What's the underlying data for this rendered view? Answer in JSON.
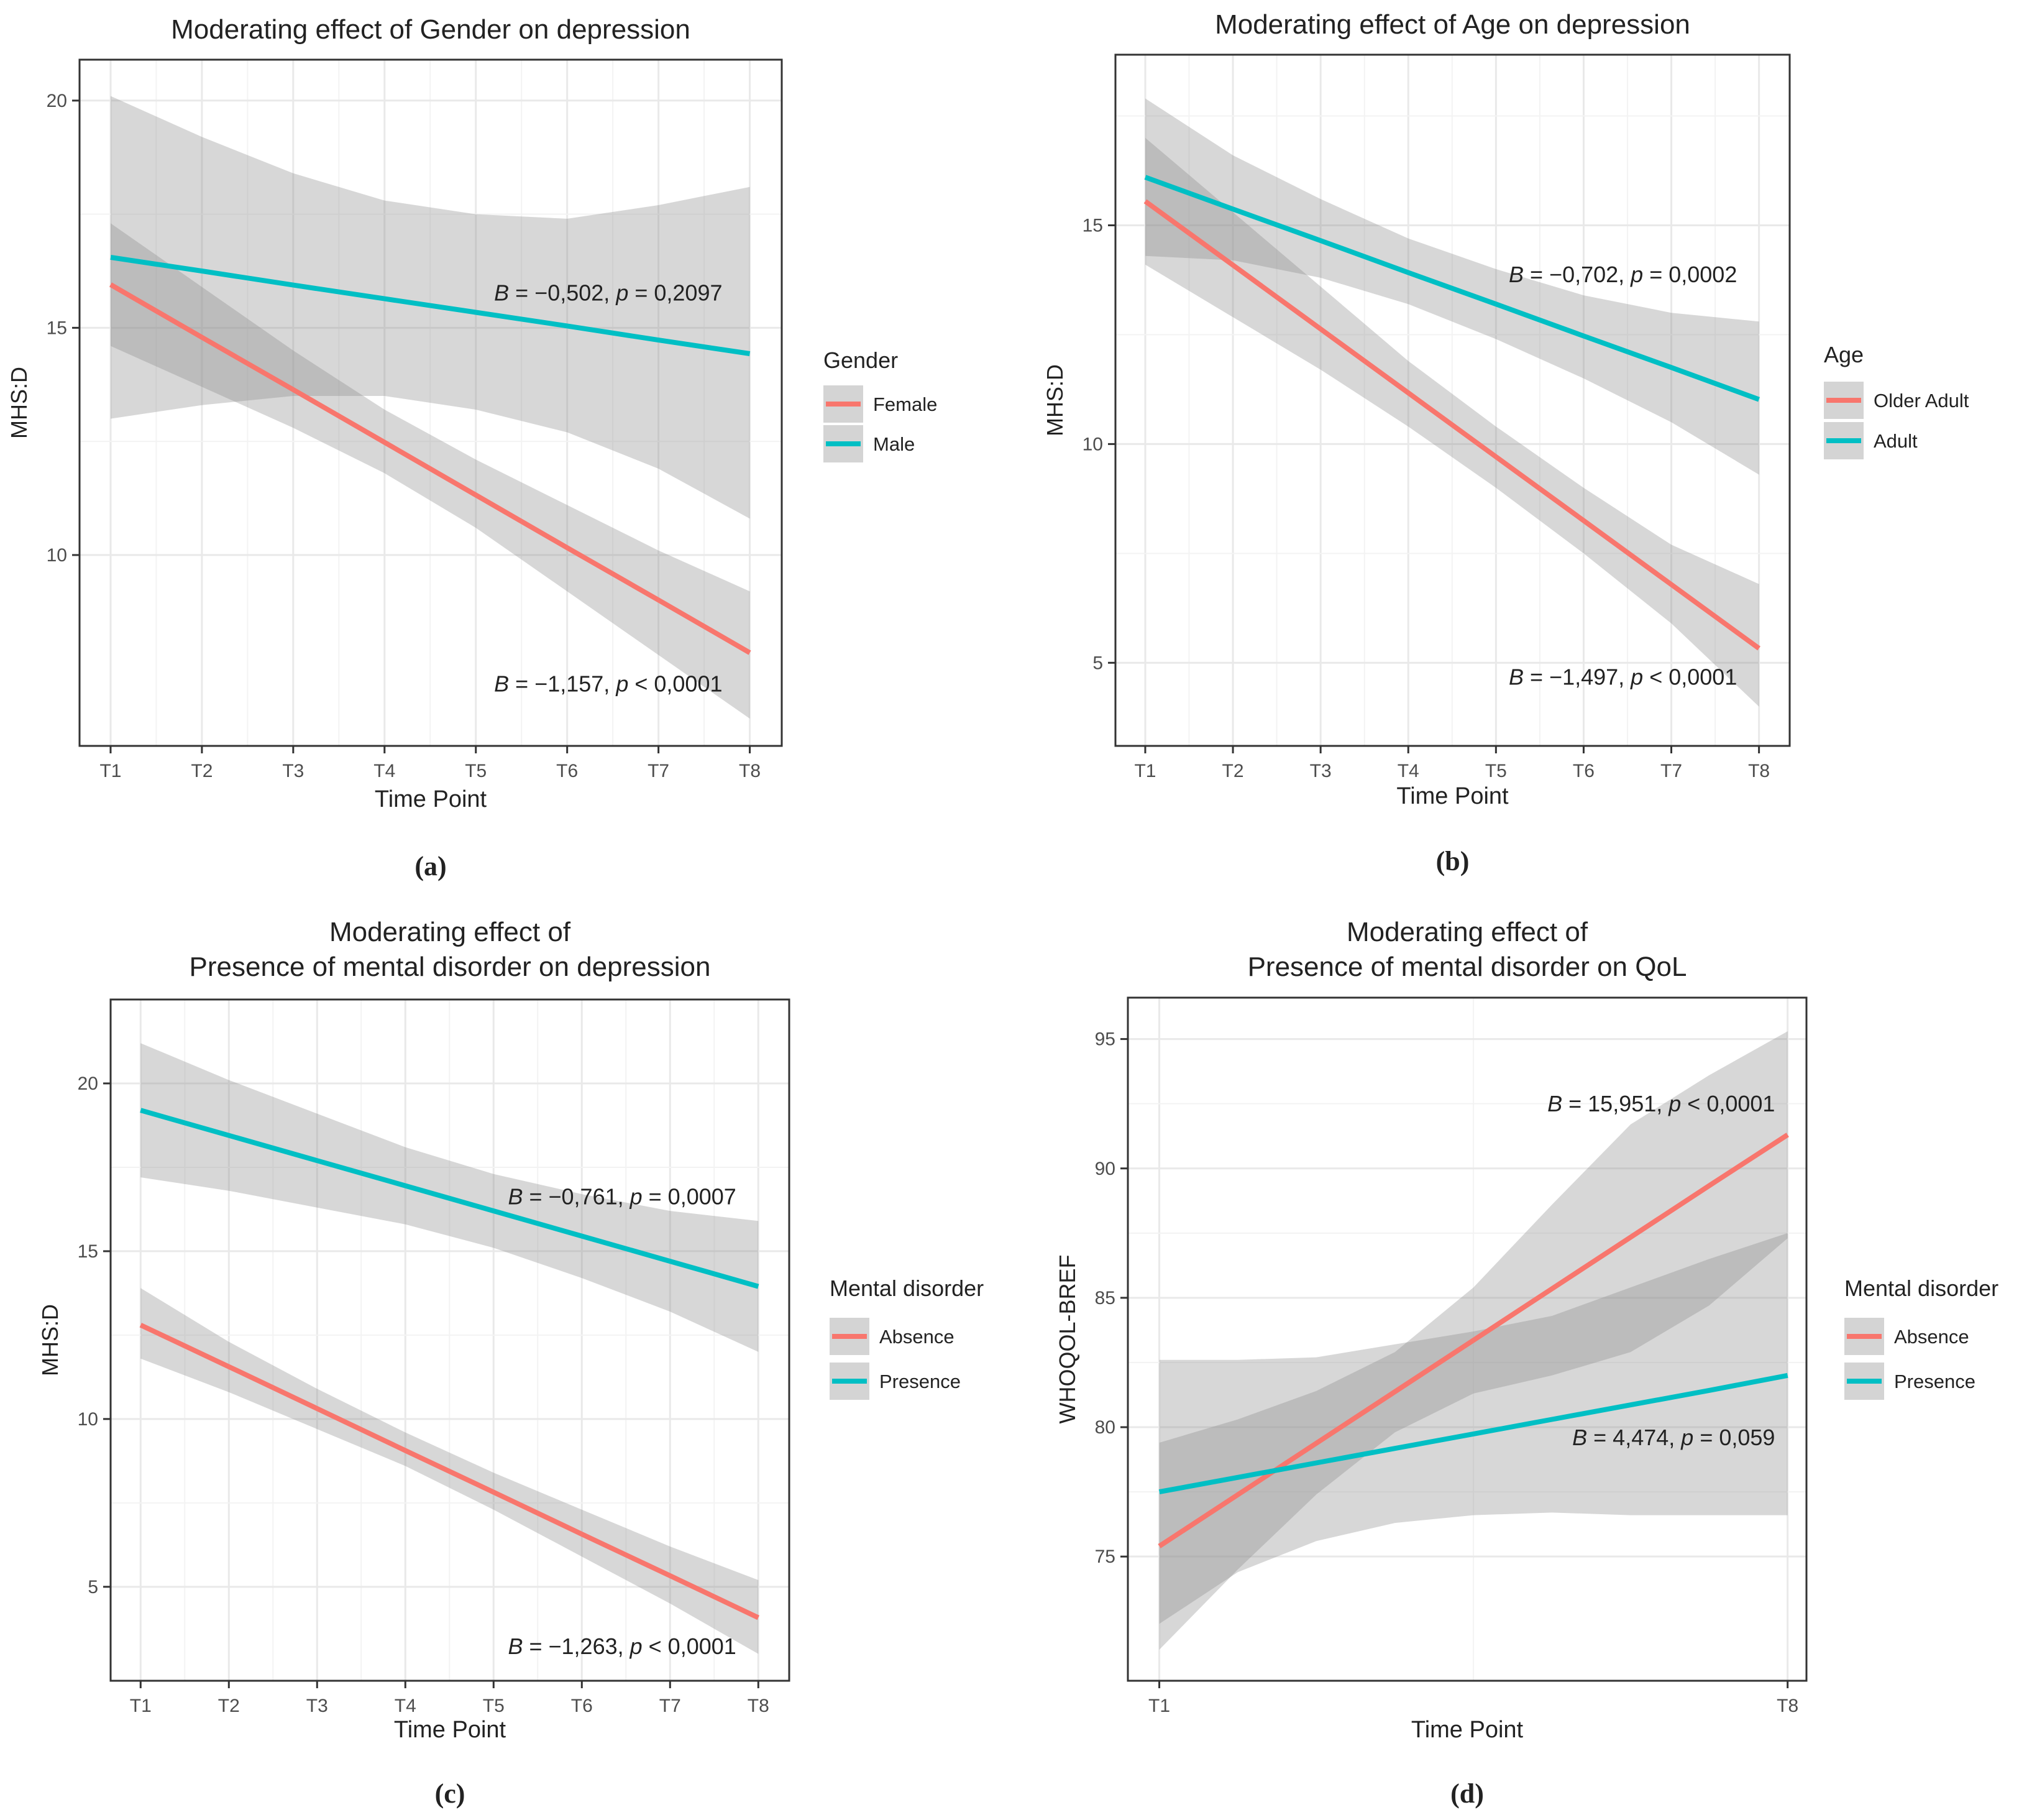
{
  "colors": {
    "red": "#F8766D",
    "teal": "#00BFC4",
    "ribbon": "#8a8a8a",
    "grid": "#e9e9e9",
    "panel_border": "#333333",
    "text": "#222222",
    "tick_text": "#4d4d4d"
  },
  "chart_data": [
    {
      "type": "line",
      "panel_label": "(a)",
      "title": "Moderating effect of Gender on depression",
      "xlabel": "Time Point",
      "ylabel": "MHS:D",
      "categories": [
        "T1",
        "T2",
        "T3",
        "T4",
        "T5",
        "T6",
        "T7",
        "T8"
      ],
      "xlim": [
        0.66,
        8.35
      ],
      "ylim": [
        5.8,
        20.9
      ],
      "yticks": [
        10,
        15,
        20
      ],
      "legend_title": "Gender",
      "legend_position": "right",
      "grid": true,
      "series": [
        {
          "name": "Female",
          "color": "#F8766D",
          "values": [
            15.95,
            14.79,
            13.64,
            12.48,
            11.32,
            10.16,
            9.01,
            7.85
          ],
          "ci_lower": [
            14.6,
            13.7,
            12.8,
            11.8,
            10.6,
            9.2,
            7.8,
            6.4
          ],
          "ci_upper": [
            17.3,
            15.9,
            14.5,
            13.2,
            12.1,
            11.1,
            10.1,
            9.2
          ]
        },
        {
          "name": "Male",
          "color": "#00BFC4",
          "values": [
            16.55,
            16.25,
            15.94,
            15.64,
            15.34,
            15.04,
            14.73,
            14.43
          ],
          "ci_lower": [
            13.0,
            13.3,
            13.5,
            13.5,
            13.2,
            12.7,
            11.9,
            10.8
          ],
          "ci_upper": [
            20.1,
            19.2,
            18.4,
            17.8,
            17.5,
            17.4,
            17.7,
            18.1
          ]
        }
      ],
      "annotations": [
        {
          "text": "B = −0,502, p = 0,2097",
          "x": 7.7,
          "y": 15.6
        },
        {
          "text": "B = −1,157, p < 0,0001",
          "x": 7.7,
          "y": 7.0
        }
      ]
    },
    {
      "type": "line",
      "panel_label": "(b)",
      "title": "Moderating effect of Age on depression",
      "xlabel": "Time Point",
      "ylabel": "MHS:D",
      "categories": [
        "T1",
        "T2",
        "T3",
        "T4",
        "T5",
        "T6",
        "T7",
        "T8"
      ],
      "xlim": [
        0.66,
        8.35
      ],
      "ylim": [
        3.1,
        18.9
      ],
      "yticks": [
        5,
        10,
        15
      ],
      "legend_title": "Age",
      "legend_position": "right",
      "grid": true,
      "series": [
        {
          "name": "Older Adult",
          "color": "#F8766D",
          "values": [
            15.55,
            14.09,
            12.63,
            11.17,
            9.71,
            8.25,
            6.79,
            5.33
          ],
          "ci_lower": [
            14.1,
            12.9,
            11.7,
            10.4,
            9.0,
            7.5,
            5.9,
            4.0
          ],
          "ci_upper": [
            17.0,
            15.3,
            13.6,
            11.9,
            10.4,
            9.0,
            7.7,
            6.8
          ]
        },
        {
          "name": "Adult",
          "color": "#00BFC4",
          "values": [
            16.1,
            15.37,
            14.65,
            13.92,
            13.2,
            12.47,
            11.75,
            11.02
          ],
          "ci_lower": [
            14.3,
            14.2,
            13.8,
            13.2,
            12.4,
            11.5,
            10.5,
            9.3
          ],
          "ci_upper": [
            17.9,
            16.6,
            15.6,
            14.7,
            14.0,
            13.4,
            13.0,
            12.8
          ]
        }
      ],
      "annotations": [
        {
          "text": "B = −0,702, p = 0,0002",
          "x": 7.75,
          "y": 13.7
        },
        {
          "text": "B = −1,497, p < 0,0001",
          "x": 7.75,
          "y": 4.5
        }
      ]
    },
    {
      "type": "line",
      "panel_label": "(c)",
      "title": "Moderating effect of\nPresence of mental disorder on depression",
      "xlabel": "Time Point",
      "ylabel": "MHS:D",
      "categories": [
        "T1",
        "T2",
        "T3",
        "T4",
        "T5",
        "T6",
        "T7",
        "T8"
      ],
      "xlim": [
        0.66,
        8.35
      ],
      "ylim": [
        2.2,
        22.5
      ],
      "yticks": [
        5,
        10,
        15,
        20
      ],
      "legend_title": "Mental disorder",
      "legend_position": "right",
      "grid": true,
      "series": [
        {
          "name": "Absence",
          "color": "#F8766D",
          "values": [
            12.8,
            11.56,
            10.31,
            9.06,
            7.82,
            6.57,
            5.33,
            4.08
          ],
          "ci_lower": [
            11.8,
            10.8,
            9.7,
            8.6,
            7.3,
            5.9,
            4.5,
            3.0
          ],
          "ci_upper": [
            13.9,
            12.3,
            10.9,
            9.6,
            8.4,
            7.3,
            6.2,
            5.2
          ]
        },
        {
          "name": "Presence",
          "color": "#00BFC4",
          "values": [
            19.2,
            18.45,
            17.7,
            16.95,
            16.2,
            15.45,
            14.7,
            13.95
          ],
          "ci_lower": [
            17.2,
            16.8,
            16.3,
            15.8,
            15.1,
            14.2,
            13.2,
            12.0
          ],
          "ci_upper": [
            21.2,
            20.1,
            19.1,
            18.1,
            17.3,
            16.7,
            16.2,
            15.9
          ]
        }
      ],
      "annotations": [
        {
          "text": "B = −0,761, p = 0,0007",
          "x": 7.75,
          "y": 16.4
        },
        {
          "text": "B = −1,263, p < 0,0001",
          "x": 7.75,
          "y": 3.0
        }
      ]
    },
    {
      "type": "line",
      "panel_label": "(d)",
      "title": "Moderating effect of\nPresence of mental disorder on QoL",
      "xlabel": "Time Point",
      "ylabel": "WHOQOL-BREF",
      "categories": [
        "T1",
        "T8"
      ],
      "xlim": [
        0.95,
        2.03
      ],
      "ylim": [
        70.2,
        96.6
      ],
      "yticks": [
        75,
        80,
        85,
        90,
        95
      ],
      "legend_title": "Mental disorder",
      "legend_position": "right",
      "grid": true,
      "series": [
        {
          "name": "Absence",
          "color": "#F8766D",
          "x": [
            1,
            1.125,
            1.25,
            1.375,
            1.5,
            1.625,
            1.75,
            1.875,
            2
          ],
          "values": [
            75.4,
            77.39,
            79.38,
            81.37,
            83.36,
            85.35,
            87.34,
            89.33,
            91.3
          ],
          "ci_lower": [
            71.4,
            74.5,
            77.4,
            79.8,
            81.3,
            82.0,
            82.9,
            84.7,
            87.3
          ],
          "ci_upper": [
            79.4,
            80.3,
            81.4,
            82.9,
            85.4,
            88.6,
            91.7,
            93.6,
            95.3
          ]
        },
        {
          "name": "Presence",
          "color": "#00BFC4",
          "x": [
            1,
            1.125,
            1.25,
            1.375,
            1.5,
            1.625,
            1.75,
            1.875,
            2
          ],
          "values": [
            77.5,
            78.06,
            78.62,
            79.18,
            79.74,
            80.3,
            80.86,
            81.42,
            82.0
          ],
          "ci_lower": [
            72.4,
            74.4,
            75.6,
            76.3,
            76.6,
            76.7,
            76.6,
            76.6,
            76.6
          ],
          "ci_upper": [
            82.6,
            82.6,
            82.7,
            83.2,
            83.7,
            84.3,
            85.4,
            86.5,
            87.5
          ]
        }
      ],
      "annotations": [
        {
          "text": "B = 15,951, p < 0,0001",
          "x": 1.98,
          "y": 92.2
        },
        {
          "text": "B = 4,474, p = 0,059",
          "x": 1.98,
          "y": 79.3
        }
      ]
    }
  ]
}
